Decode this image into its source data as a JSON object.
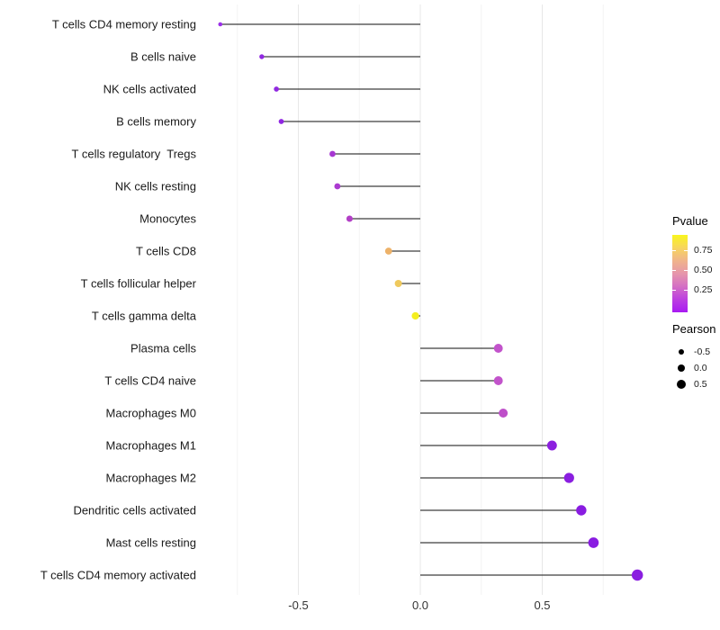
{
  "chart_data": {
    "type": "scatter",
    "variant": "lollipop",
    "orientation": "horizontal",
    "title": "",
    "xlabel": "",
    "ylabel": "",
    "categories": [
      "T cells CD4 memory resting",
      "B cells naive",
      "NK cells activated",
      "B cells memory",
      "T cells regulatory  Tregs",
      "NK cells resting",
      "Monocytes",
      "T cells CD8",
      "T cells follicular helper",
      "T cells gamma delta",
      "Plasma cells",
      "T cells CD4 naive",
      "Macrophages M0",
      "Macrophages M1",
      "Macrophages M2",
      "Dendritic cells activated",
      "Mast cells resting",
      "T cells CD4 memory activated"
    ],
    "series": [
      {
        "name": "Pearson",
        "values": [
          -0.82,
          -0.65,
          -0.59,
          -0.57,
          -0.36,
          -0.34,
          -0.29,
          -0.13,
          -0.09,
          -0.02,
          0.32,
          0.32,
          0.34,
          0.54,
          0.61,
          0.66,
          0.71,
          0.89
        ],
        "point_colors": [
          "#9b30e8",
          "#9129e1",
          "#9129e1",
          "#9026e2",
          "#a737d2",
          "#ab3ad0",
          "#b23fc6",
          "#edb269",
          "#efc95d",
          "#f4ee1f",
          "#c253cb",
          "#c253cb",
          "#be4fc9",
          "#8c20df",
          "#8a1ee0",
          "#891ce1",
          "#891ce1",
          "#8a1ee0"
        ]
      }
    ],
    "x_tick_labels": [
      "-0.5",
      "0.0",
      "0.5"
    ],
    "x_ticks_major": [
      -0.5,
      0,
      0.5
    ],
    "x_ticks_minor": [
      -0.75,
      -0.25,
      0.25,
      0.75
    ],
    "xlim": [
      -0.91,
      0.98
    ],
    "grid": "vertical-only",
    "stem_color": "#3d3d3d",
    "major_grid_color": "#e7e7e7",
    "minor_grid_color": "#f4f4f4",
    "axis_text_color": "#333333",
    "label_text_color": "#1a1a1a",
    "background": "#ffffff",
    "legend_position": "right",
    "legends": {
      "pvalue": {
        "title": "Pvalue",
        "tick_labels": [
          "0.75",
          "0.50",
          "0.25"
        ],
        "gradient_top_to_bottom": [
          "#f9f51d",
          "#f7d55e",
          "#f0b48b",
          "#e696ab",
          "#d46fc4",
          "#bc3fe0",
          "#a81af2"
        ]
      },
      "pearson": {
        "title": "Pearson",
        "size_labels": [
          "-0.5",
          "0.0",
          "0.5"
        ],
        "size_values": [
          -0.5,
          0.0,
          0.5
        ],
        "dot_color": "#000000"
      }
    }
  }
}
